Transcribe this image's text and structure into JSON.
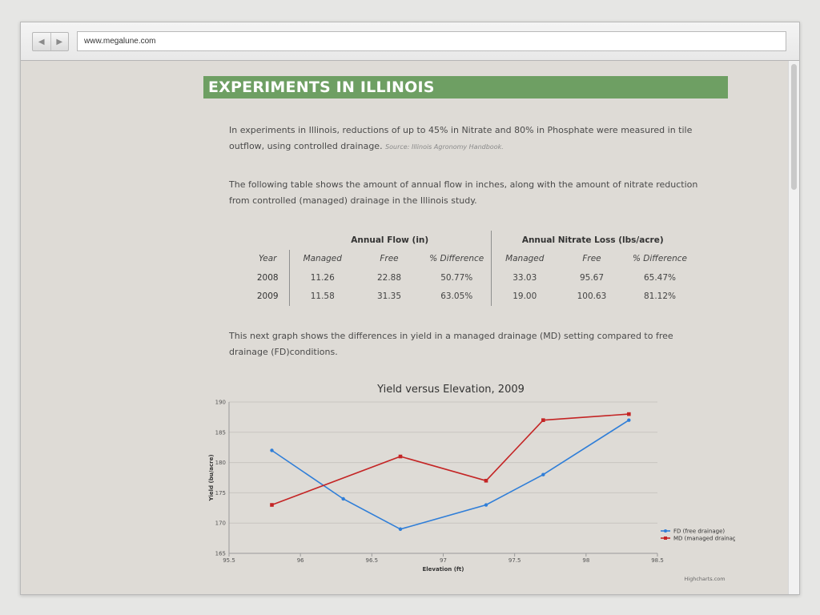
{
  "browser": {
    "url": "www.megalune.com",
    "back_glyph": "◀",
    "forward_glyph": "▶"
  },
  "page": {
    "title": "EXPERIMENTS IN ILLINOIS",
    "intro": "In experiments in Illinois, reductions of up to 45% in Nitrate and 80% in Phosphate were measured in tile outflow, using controlled drainage.",
    "source": "Source: Illinois Agronomy Handbook.",
    "table_intro": "The following table shows the amount of annual flow in inches, along with the amount of nitrate reduction from controlled (managed) drainage in the Illinois study.",
    "graph_intro": "This next graph shows the differences in yield in a managed drainage (MD) setting compared to free drainage (FD)conditions."
  },
  "table": {
    "group_flow": "Annual Flow (in)",
    "group_nitrate": "Annual Nitrate Loss (lbs/acre)",
    "headers": [
      "Year",
      "Managed",
      "Free",
      "% Difference",
      "Managed",
      "Free",
      "% Difference"
    ],
    "rows": [
      [
        "2008",
        "11.26",
        "22.88",
        "50.77%",
        "33.03",
        "95.67",
        "65.47%"
      ],
      [
        "2009",
        "11.58",
        "31.35",
        "63.05%",
        "19.00",
        "100.63",
        "81.12%"
      ]
    ]
  },
  "chart_data": {
    "type": "line",
    "title": "Yield versus Elevation, 2009",
    "xlabel": "Elevation (ft)",
    "ylabel": "Yield (bu/acre)",
    "xlim": [
      95.5,
      98.5
    ],
    "ylim": [
      165,
      190
    ],
    "xticks": [
      95.5,
      96,
      96.5,
      97,
      97.5,
      98,
      98.5
    ],
    "yticks": [
      165,
      170,
      175,
      180,
      185,
      190
    ],
    "grid": true,
    "legend_position": "bottom-right",
    "credit": "Highcharts.com",
    "series": [
      {
        "name": "FD (free drainage)",
        "color": "#2f7ed8",
        "marker": "circle",
        "points": [
          [
            95.8,
            182
          ],
          [
            96.3,
            174
          ],
          [
            96.7,
            169
          ],
          [
            97.3,
            173
          ],
          [
            97.7,
            178
          ],
          [
            98.3,
            187
          ]
        ]
      },
      {
        "name": "MD (managed drainage)",
        "color": "#c42525",
        "marker": "square",
        "points": [
          [
            95.8,
            173
          ],
          [
            96.7,
            181
          ],
          [
            97.3,
            177
          ],
          [
            97.7,
            187
          ],
          [
            98.3,
            188
          ]
        ]
      }
    ]
  }
}
